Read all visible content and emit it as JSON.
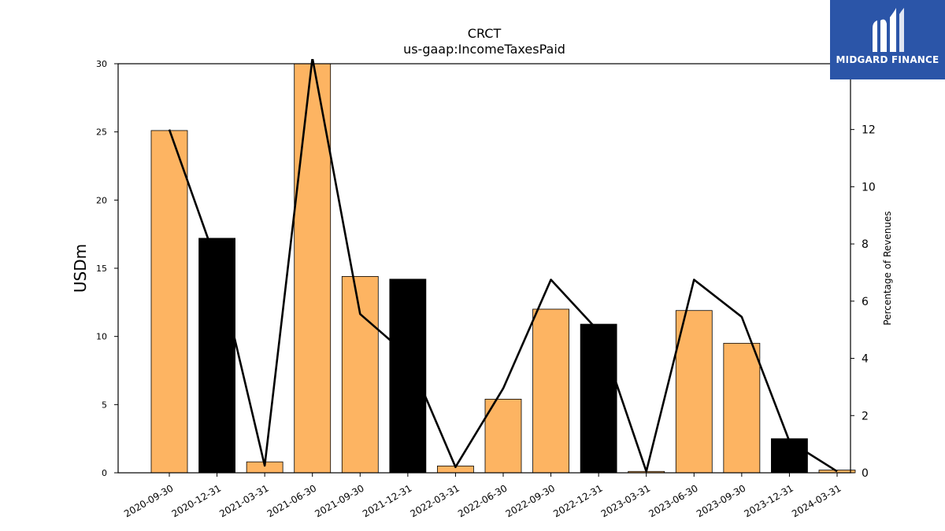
{
  "logo": {
    "text": "MIDGARD FINANCE",
    "icon": "midgard-logo-icon",
    "bg_color": "#2b55a8"
  },
  "chart_data": {
    "type": "bar",
    "title": "CRCT",
    "subtitle": "us-gaap:IncomeTaxesPaid",
    "ylabel": "USDm",
    "y2label": "Percentage of Revenues",
    "ylim": [
      0,
      30
    ],
    "y2lim": [
      0,
      14.3
    ],
    "yticks": [
      0,
      5,
      10,
      15,
      20,
      25,
      30
    ],
    "y2ticks": [
      0,
      2,
      4,
      6,
      8,
      10,
      12
    ],
    "categories": [
      "2020-09-30",
      "2020-12-31",
      "2021-03-31",
      "2021-06-30",
      "2021-09-30",
      "2021-12-31",
      "2022-03-31",
      "2022-06-30",
      "2022-09-30",
      "2022-12-31",
      "2023-03-31",
      "2023-06-30",
      "2023-09-30",
      "2023-12-31",
      "2024-03-31"
    ],
    "series": [
      {
        "type": "bar",
        "values": [
          25.1,
          17.2,
          0.8,
          30.0,
          14.4,
          14.2,
          0.5,
          5.4,
          12.0,
          10.9,
          0.1,
          11.9,
          9.5,
          2.5,
          0.2
        ],
        "colors": [
          "#fdb462",
          "#000000",
          "#fdb462",
          "#fdb462",
          "#fdb462",
          "#000000",
          "#fdb462",
          "#fdb462",
          "#fdb462",
          "#000000",
          "#fdb462",
          "#fdb462",
          "#fdb462",
          "#000000",
          "#fdb462"
        ]
      },
      {
        "type": "line",
        "axis": "right",
        "color": "#000000",
        "values": [
          12.0,
          7.3,
          0.25,
          14.5,
          5.55,
          4.1,
          0.2,
          2.95,
          6.75,
          4.95,
          0.05,
          6.75,
          5.45,
          1.1,
          0.05
        ]
      }
    ],
    "colors": {
      "bar_orange": "#fdb462",
      "bar_black": "#000000",
      "line": "#000000"
    }
  }
}
